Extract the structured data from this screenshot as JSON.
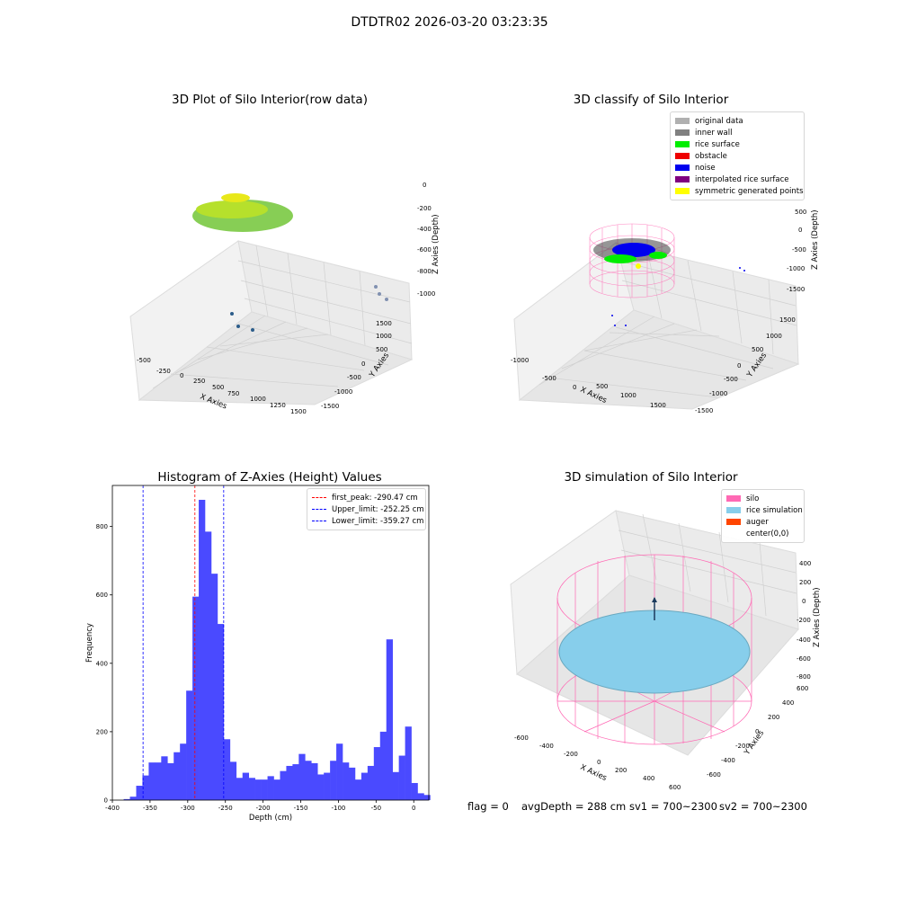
{
  "suptitle": "DTDTR02 2026-03-20 03:23:35",
  "plot1": {
    "title": "3D Plot of Silo Interior(row data)",
    "xlabel": "X Axies",
    "ylabel": "Y Axies",
    "zlabel": "Z Axies (Depth)",
    "xticks": [
      "-500",
      "-250",
      "0",
      "250",
      "500",
      "750",
      "1000",
      "1250",
      "1500"
    ],
    "yticks": [
      "-1500",
      "-1000",
      "-500",
      "0",
      "500",
      "1000",
      "1500"
    ],
    "zticks": [
      "0",
      "-200",
      "-400",
      "-600",
      "-800",
      "-1000"
    ]
  },
  "plot2": {
    "title": "3D classify of Silo Interior",
    "xlabel": "X Axies",
    "ylabel": "Y Axies",
    "zlabel": "Z Axies (Depth)",
    "xticks": [
      "-1000",
      "-500",
      "0",
      "500",
      "1000",
      "1500"
    ],
    "yticks": [
      "-1500",
      "-1000",
      "-500",
      "0",
      "500",
      "1000",
      "1500"
    ],
    "zticks": [
      "500",
      "0",
      "-500",
      "-1000",
      "-1500"
    ],
    "legend": [
      {
        "label": "original data",
        "color": "#b0b0b0"
      },
      {
        "label": "inner wall",
        "color": "#808080"
      },
      {
        "label": "rice surface",
        "color": "#00ee00"
      },
      {
        "label": "obstacle",
        "color": "#ee0000"
      },
      {
        "label": "noise",
        "color": "#0000ee"
      },
      {
        "label": "interpolated rice surface",
        "color": "#800080"
      },
      {
        "label": "symmetric generated points",
        "color": "#ffff00"
      }
    ]
  },
  "plot4": {
    "title": "3D simulation of Silo Interior",
    "xlabel": "X Axies",
    "ylabel": "Y Axies",
    "zlabel": "Z Axies (Depth)",
    "xticks": [
      "-600",
      "-400",
      "-200",
      "0",
      "200",
      "400",
      "600"
    ],
    "yticks": [
      "-600",
      "-400",
      "-200",
      "0",
      "200",
      "400",
      "600"
    ],
    "zticks": [
      "400",
      "200",
      "0",
      "-200",
      "-400",
      "-600",
      "-800"
    ],
    "legend": [
      {
        "label": "silo",
        "color": "#ff69b4"
      },
      {
        "label": "rice simulation",
        "color": "#87ceeb"
      },
      {
        "label": "auger",
        "color": "#ff4500"
      },
      {
        "label": "center(0,0)",
        "color": "#ffffff"
      }
    ]
  },
  "status": {
    "flag": "flag = 0",
    "avg": "avgDepth = 288 cm",
    "sv1": "sv1 = 700~2300",
    "sv2": "sv2 = 700~2300"
  },
  "chart_data": [
    {
      "type": "bar",
      "title": "Histogram of Z-Axies (Height) Values",
      "xlabel": "Depth (cm)",
      "ylabel": "Frequency",
      "xlim": [
        -400,
        20
      ],
      "ylim": [
        0,
        920
      ],
      "xticks": [
        -400,
        -350,
        -300,
        -250,
        -200,
        -150,
        -100,
        -50,
        0
      ],
      "yticks": [
        0,
        200,
        400,
        600,
        800
      ],
      "bin_edges_start": -385,
      "bin_width": 8.3,
      "values": [
        3,
        10,
        42,
        72,
        110,
        110,
        128,
        108,
        140,
        165,
        320,
        595,
        878,
        785,
        662,
        515,
        178,
        112,
        65,
        80,
        65,
        60,
        60,
        70,
        60,
        85,
        100,
        105,
        135,
        115,
        108,
        75,
        80,
        115,
        165,
        110,
        95,
        60,
        80,
        100,
        155,
        200,
        470,
        82,
        130,
        215,
        50,
        20,
        15
      ],
      "bar_color": "#4a4aff",
      "vlines": [
        {
          "name": "first_peak: -290.47 cm",
          "x": -290.47,
          "color": "#ff0000"
        },
        {
          "name": "Upper_limit: -252.25 cm",
          "x": -252.25,
          "color": "#0000ff"
        },
        {
          "name": "Lower_limit: -359.27 cm",
          "x": -359.27,
          "color": "#0000ff"
        }
      ],
      "legend_position": "top-right"
    }
  ]
}
